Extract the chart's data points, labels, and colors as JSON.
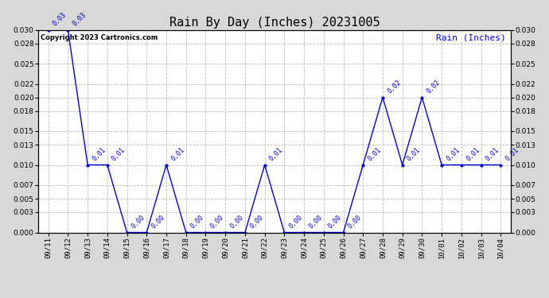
{
  "title": "Rain By Day (Inches) 20231005",
  "legend_label": "Rain (Inches)",
  "copyright_text": "Copyright 2023 Cartronics.com",
  "dates": [
    "09/11",
    "09/12",
    "09/13",
    "09/14",
    "09/15",
    "09/16",
    "09/17",
    "09/18",
    "09/19",
    "09/20",
    "09/21",
    "09/22",
    "09/23",
    "09/24",
    "09/25",
    "09/26",
    "09/27",
    "09/28",
    "09/29",
    "09/30",
    "10/01",
    "10/02",
    "10/03",
    "10/04"
  ],
  "values": [
    0.03,
    0.03,
    0.01,
    0.01,
    0.0,
    0.0,
    0.01,
    0.0,
    0.0,
    0.0,
    0.0,
    0.01,
    0.0,
    0.0,
    0.0,
    0.0,
    0.01,
    0.02,
    0.01,
    0.02,
    0.01,
    0.01,
    0.01,
    0.01
  ],
  "ylim": [
    0.0,
    0.03
  ],
  "yticks": [
    0.0,
    0.003,
    0.005,
    0.007,
    0.01,
    0.013,
    0.015,
    0.018,
    0.02,
    0.022,
    0.025,
    0.028,
    0.03
  ],
  "line_color": "#0000cc",
  "marker_color": "#0000cc",
  "label_color": "#0000bb",
  "grid_color": "#bbbbbb",
  "background_color": "#d8d8d8",
  "plot_background": "#ffffff",
  "title_fontsize": 11,
  "tick_fontsize": 6.5,
  "annotation_fontsize": 6,
  "legend_fontsize": 8,
  "copyright_fontsize": 6
}
